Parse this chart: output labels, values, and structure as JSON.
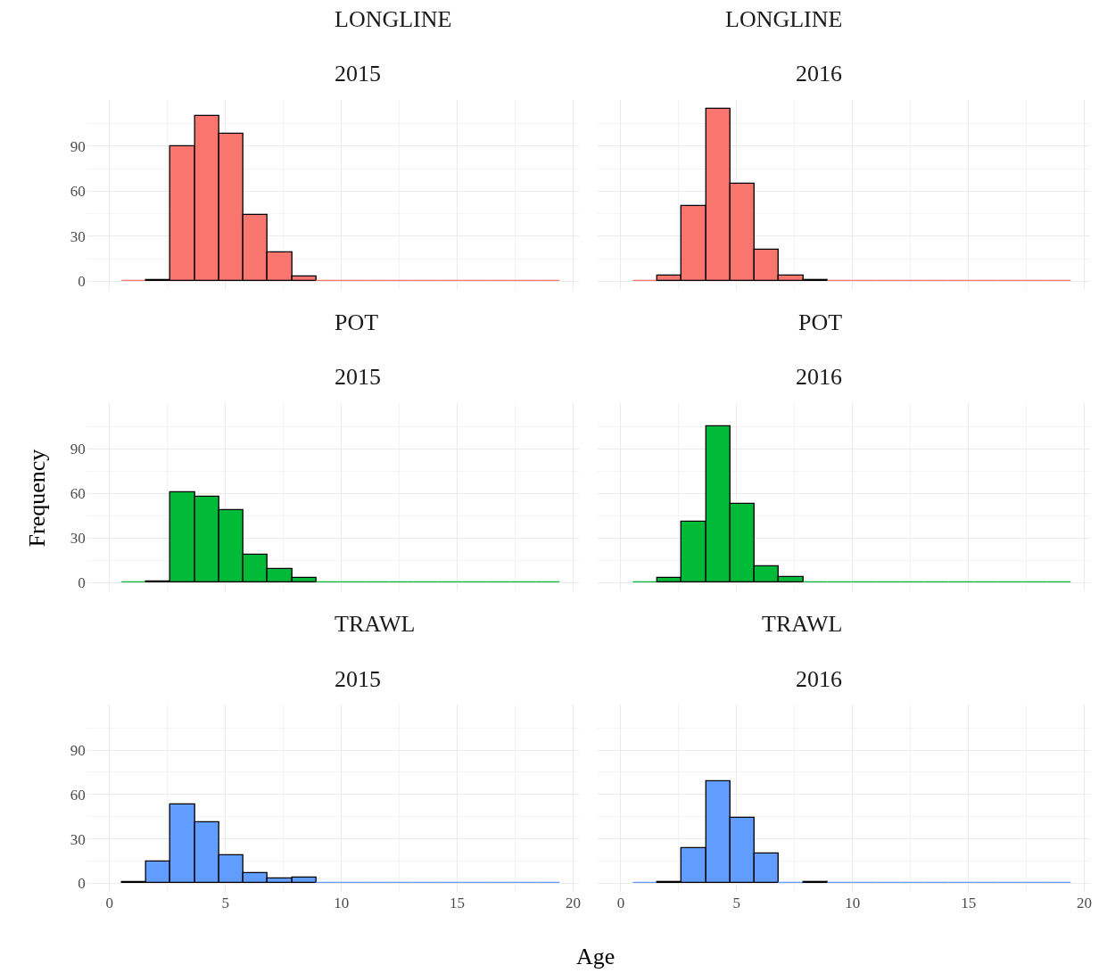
{
  "chart_data": [
    {
      "type": "histogram",
      "title": "LONGLINE",
      "subtitle": "2015",
      "color": "#f8766d",
      "bins": [
        0.53,
        1.58,
        2.63,
        3.68,
        4.73,
        5.78,
        6.83,
        7.88,
        8.93,
        9.98,
        11.03,
        12.08,
        13.13,
        14.18,
        15.23,
        16.28,
        17.33,
        18.38,
        19.43
      ],
      "values": [
        0,
        1,
        90,
        110,
        98,
        44,
        19,
        3,
        0,
        0,
        0,
        0,
        0,
        0,
        0,
        0,
        0,
        0
      ],
      "xlim": [
        -1,
        20.25
      ],
      "xticks": [
        0,
        5,
        10,
        15,
        20
      ],
      "ylim": [
        -5.75,
        120.75
      ],
      "yticks": [
        0,
        30,
        60,
        90
      ],
      "grid": true,
      "tick_labels": "y"
    },
    {
      "type": "histogram",
      "title": "LONGLINE",
      "subtitle": "2016",
      "color": "#f8766d",
      "bins": [
        0.53,
        1.58,
        2.63,
        3.68,
        4.73,
        5.78,
        6.83,
        7.88,
        8.93,
        9.98,
        11.03,
        12.08,
        13.13,
        14.18,
        15.23,
        16.28,
        17.33,
        18.38,
        19.43
      ],
      "values": [
        0,
        4,
        50,
        115,
        65,
        21,
        4,
        1,
        0,
        0,
        0,
        0,
        0,
        0,
        0,
        0,
        0,
        0
      ],
      "xlim": [
        -1,
        20.25
      ],
      "xticks": [
        0,
        5,
        10,
        15,
        20
      ],
      "ylim": [
        -5.75,
        120.75
      ],
      "yticks": [
        0,
        30,
        60,
        90
      ],
      "grid": true,
      "tick_labels": false
    },
    {
      "type": "histogram",
      "title": "POT",
      "subtitle": "2015",
      "ylabel": "Frequency",
      "color": "#00ba38",
      "bins": [
        0.53,
        1.58,
        2.63,
        3.68,
        4.73,
        5.78,
        6.83,
        7.88,
        8.93,
        9.98,
        11.03,
        12.08,
        13.13,
        14.18,
        15.23,
        16.28,
        17.33,
        18.38,
        19.43
      ],
      "values": [
        0,
        1,
        61,
        58,
        49,
        19,
        9,
        3,
        0,
        0,
        0,
        0,
        0,
        0,
        0,
        0,
        0,
        0
      ],
      "xlim": [
        -1,
        20.25
      ],
      "xticks": [
        0,
        5,
        10,
        15,
        20
      ],
      "ylim": [
        -5.75,
        120.75
      ],
      "yticks": [
        0,
        30,
        60,
        90
      ],
      "grid": true,
      "tick_labels": "y"
    },
    {
      "type": "histogram",
      "title": "POT",
      "subtitle": "2016",
      "color": "#00ba38",
      "bins": [
        0.53,
        1.58,
        2.63,
        3.68,
        4.73,
        5.78,
        6.83,
        7.88,
        8.93,
        9.98,
        11.03,
        12.08,
        13.13,
        14.18,
        15.23,
        16.28,
        17.33,
        18.38,
        19.43
      ],
      "values": [
        0,
        3,
        41,
        105,
        53,
        11,
        4,
        0,
        0,
        0,
        0,
        0,
        0,
        0,
        0,
        0,
        0,
        0
      ],
      "xlim": [
        -1,
        20.25
      ],
      "xticks": [
        0,
        5,
        10,
        15,
        20
      ],
      "ylim": [
        -5.75,
        120.75
      ],
      "yticks": [
        0,
        30,
        60,
        90
      ],
      "grid": true,
      "tick_labels": false
    },
    {
      "type": "histogram",
      "title": "TRAWL",
      "subtitle": "2015",
      "xlabel": "Age",
      "color": "#619cff",
      "bins": [
        0.53,
        1.58,
        2.63,
        3.68,
        4.73,
        5.78,
        6.83,
        7.88,
        8.93,
        9.98,
        11.03,
        12.08,
        13.13,
        14.18,
        15.23,
        16.28,
        17.33,
        18.38,
        19.43
      ],
      "values": [
        1,
        15,
        53,
        41,
        19,
        7,
        3,
        4,
        0,
        0,
        0,
        0,
        0,
        0,
        0,
        0,
        0,
        0
      ],
      "xlim": [
        -1,
        20.25
      ],
      "xticks": [
        0,
        5,
        10,
        15,
        20
      ],
      "ylim": [
        -5.75,
        120.75
      ],
      "yticks": [
        0,
        30,
        60,
        90
      ],
      "grid": true
    },
    {
      "type": "histogram",
      "title": "TRAWL",
      "subtitle": "2016",
      "color": "#619cff",
      "bins": [
        0.53,
        1.58,
        2.63,
        3.68,
        4.73,
        5.78,
        6.83,
        7.88,
        8.93,
        9.98,
        11.03,
        12.08,
        13.13,
        14.18,
        15.23,
        16.28,
        17.33,
        18.38,
        19.43
      ],
      "values": [
        0,
        1,
        24,
        69,
        44,
        20,
        0,
        1,
        0,
        0,
        0,
        0,
        0,
        0,
        0,
        0,
        0,
        0
      ],
      "xlim": [
        -1,
        20.25
      ],
      "xticks": [
        0,
        5,
        10,
        15,
        20
      ],
      "ylim": [
        -5.75,
        120.75
      ],
      "yticks": [
        0,
        30,
        60,
        90
      ],
      "grid": true,
      "tick_labels": "x"
    }
  ]
}
